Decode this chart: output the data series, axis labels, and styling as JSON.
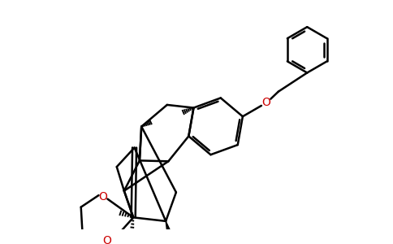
{
  "bg_color": "#ffffff",
  "bond_color": "#000000",
  "oxygen_color": "#cc0000",
  "line_width": 1.8,
  "figsize": [
    4.84,
    3.0
  ],
  "dpi": 100,
  "xlim": [
    0,
    10
  ],
  "ylim": [
    0,
    6.2
  ]
}
